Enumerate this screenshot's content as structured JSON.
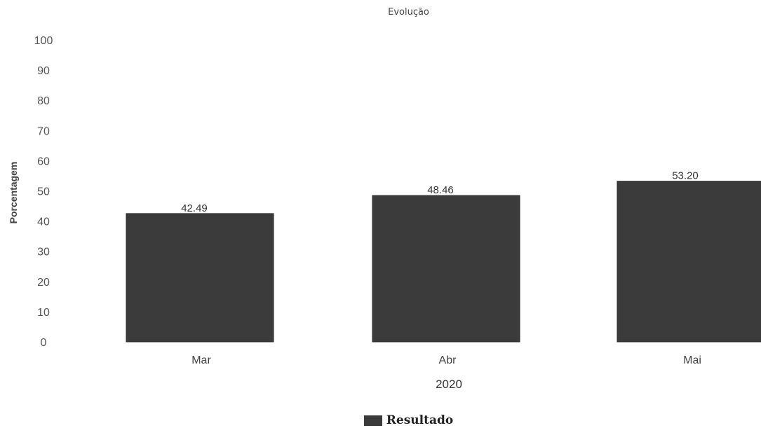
{
  "colors": {
    "bar": "#3b3b3b",
    "bar_edge": "#2a2a2a",
    "text": "#333333",
    "background": "#ffffff"
  },
  "chart_data": {
    "type": "bar",
    "title": "Evolução",
    "ylabel": "Porcentagem",
    "xlabel": "2020",
    "categories": [
      "Mar",
      "Abr",
      "Mai"
    ],
    "series": [
      {
        "name": "Resultado",
        "values": [
          42.49,
          48.46,
          53.2
        ],
        "value_labels": [
          "42.49",
          "48.46",
          "53.20"
        ]
      }
    ],
    "ylim": [
      0,
      100
    ],
    "yticks": [
      "0",
      "10",
      "20",
      "30",
      "40",
      "50",
      "60",
      "70",
      "80",
      "90",
      "100"
    ],
    "grid": false,
    "legend_position": "bottom-center"
  }
}
